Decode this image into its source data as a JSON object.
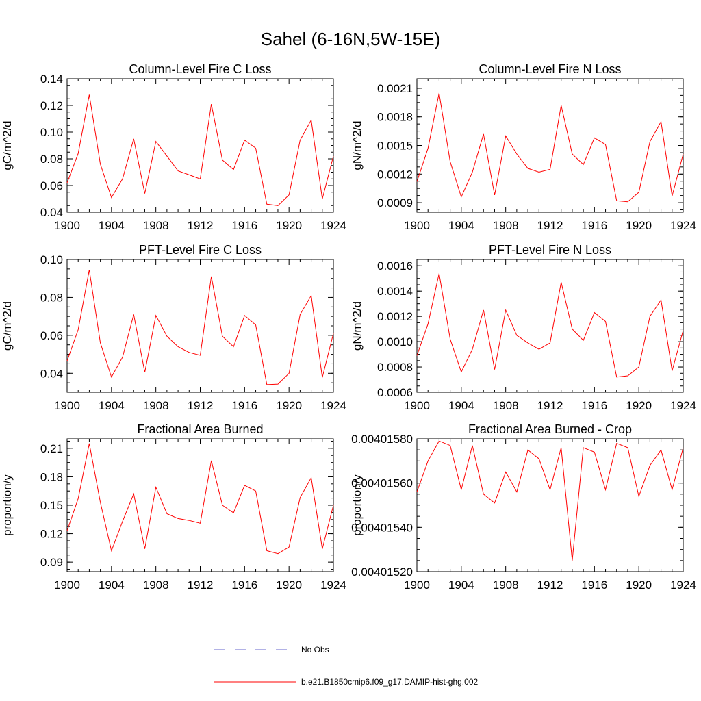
{
  "figure": {
    "title": "Sahel (6-16N,5W-15E)",
    "line_color": "#ff0000",
    "obs_color": "#6666cc"
  },
  "legend": {
    "position": "bottom-center",
    "entries": [
      {
        "label": "No Obs",
        "style": "dashed",
        "color": "#6666cc"
      },
      {
        "label": "b.e21.B1850cmip6.f09_g17.DAMIP-hist-ghg.002",
        "style": "solid",
        "color": "#ff0000"
      }
    ]
  },
  "chart_data": [
    {
      "type": "line",
      "title": "Column-Level Fire C Loss",
      "xlabel": "",
      "ylabel": "gC/m^2/d",
      "xlim": [
        1900,
        1924
      ],
      "ylim": [
        0.04,
        0.14
      ],
      "xticks": [
        1900,
        1904,
        1908,
        1912,
        1916,
        1920,
        1924
      ],
      "yticks": [
        0.04,
        0.06,
        0.08,
        0.1,
        0.12,
        0.14
      ],
      "ytick_labels": [
        "0.04",
        "0.06",
        "0.08",
        "0.10",
        "0.12",
        "0.14"
      ],
      "grid": false,
      "x": [
        1900,
        1901,
        1902,
        1903,
        1904,
        1905,
        1906,
        1907,
        1908,
        1909,
        1910,
        1911,
        1912,
        1913,
        1914,
        1915,
        1916,
        1917,
        1918,
        1919,
        1920,
        1921,
        1922,
        1923,
        1924
      ],
      "series": [
        {
          "values": [
            0.062,
            0.084,
            0.128,
            0.076,
            0.051,
            0.065,
            0.095,
            0.054,
            0.093,
            0.082,
            0.071,
            0.068,
            0.065,
            0.121,
            0.079,
            0.072,
            0.094,
            0.088,
            0.046,
            0.045,
            0.053,
            0.094,
            0.109,
            0.05,
            0.082
          ]
        }
      ]
    },
    {
      "type": "line",
      "title": "Column-Level Fire N Loss",
      "xlabel": "",
      "ylabel": "gN/m^2/d",
      "xlim": [
        1900,
        1924
      ],
      "ylim": [
        0.0008,
        0.0022
      ],
      "xticks": [
        1900,
        1904,
        1908,
        1912,
        1916,
        1920,
        1924
      ],
      "yticks": [
        0.0009,
        0.0012,
        0.0015,
        0.0018,
        0.0021
      ],
      "ytick_labels": [
        "0.0009",
        "0.0012",
        "0.0015",
        "0.0018",
        "0.0021"
      ],
      "grid": false,
      "x": [
        1900,
        1901,
        1902,
        1903,
        1904,
        1905,
        1906,
        1907,
        1908,
        1909,
        1910,
        1911,
        1912,
        1913,
        1914,
        1915,
        1916,
        1917,
        1918,
        1919,
        1920,
        1921,
        1922,
        1923,
        1924
      ],
      "series": [
        {
          "values": [
            0.00112,
            0.00147,
            0.00205,
            0.00133,
            0.00096,
            0.00122,
            0.00162,
            0.00098,
            0.0016,
            0.00141,
            0.00126,
            0.00122,
            0.00125,
            0.00192,
            0.00141,
            0.0013,
            0.00158,
            0.00151,
            0.00092,
            0.00091,
            0.00101,
            0.00154,
            0.00175,
            0.00097,
            0.00141
          ]
        }
      ]
    },
    {
      "type": "line",
      "title": "PFT-Level Fire C Loss",
      "xlabel": "",
      "ylabel": "gC/m^2/d",
      "xlim": [
        1900,
        1924
      ],
      "ylim": [
        0.03,
        0.1
      ],
      "xticks": [
        1900,
        1904,
        1908,
        1912,
        1916,
        1920,
        1924
      ],
      "yticks": [
        0.04,
        0.06,
        0.08,
        0.1
      ],
      "ytick_labels": [
        "0.04",
        "0.06",
        "0.08",
        "0.10"
      ],
      "grid": false,
      "x": [
        1900,
        1901,
        1902,
        1903,
        1904,
        1905,
        1906,
        1907,
        1908,
        1909,
        1910,
        1911,
        1912,
        1913,
        1914,
        1915,
        1916,
        1917,
        1918,
        1919,
        1920,
        1921,
        1922,
        1923,
        1924
      ],
      "series": [
        {
          "values": [
            0.0465,
            0.063,
            0.0945,
            0.056,
            0.038,
            0.0485,
            0.071,
            0.0405,
            0.0705,
            0.0595,
            0.054,
            0.051,
            0.0495,
            0.091,
            0.0595,
            0.054,
            0.0705,
            0.0655,
            0.034,
            0.0343,
            0.04,
            0.071,
            0.081,
            0.0378,
            0.061
          ]
        }
      ]
    },
    {
      "type": "line",
      "title": "PFT-Level Fire N Loss",
      "xlabel": "",
      "ylabel": "gN/m^2/d",
      "xlim": [
        1900,
        1924
      ],
      "ylim": [
        0.0006,
        0.00165
      ],
      "xticks": [
        1900,
        1904,
        1908,
        1912,
        1916,
        1920,
        1924
      ],
      "yticks": [
        0.0006,
        0.0008,
        0.001,
        0.0012,
        0.0014,
        0.0016
      ],
      "ytick_labels": [
        "0.0006",
        "0.0008",
        "0.0010",
        "0.0012",
        "0.0014",
        "0.0016"
      ],
      "grid": false,
      "x": [
        1900,
        1901,
        1902,
        1903,
        1904,
        1905,
        1906,
        1907,
        1908,
        1909,
        1910,
        1911,
        1912,
        1913,
        1914,
        1915,
        1916,
        1917,
        1918,
        1919,
        1920,
        1921,
        1922,
        1923,
        1924
      ],
      "series": [
        {
          "values": [
            0.00089,
            0.00114,
            0.00154,
            0.00102,
            0.00076,
            0.00094,
            0.00125,
            0.00078,
            0.00125,
            0.00105,
            0.00099,
            0.00094,
            0.00099,
            0.00147,
            0.0011,
            0.00101,
            0.00123,
            0.00116,
            0.00072,
            0.00073,
            0.0008,
            0.0012,
            0.00133,
            0.00077,
            0.00109
          ]
        }
      ]
    },
    {
      "type": "line",
      "title": "Fractional Area Burned",
      "xlabel": "",
      "ylabel": "proportion/y",
      "xlim": [
        1900,
        1924
      ],
      "ylim": [
        0.08,
        0.22
      ],
      "xticks": [
        1900,
        1904,
        1908,
        1912,
        1916,
        1920,
        1924
      ],
      "yticks": [
        0.09,
        0.12,
        0.15,
        0.18,
        0.21
      ],
      "ytick_labels": [
        "0.09",
        "0.12",
        "0.15",
        "0.18",
        "0.21"
      ],
      "grid": false,
      "x": [
        1900,
        1901,
        1902,
        1903,
        1904,
        1905,
        1906,
        1907,
        1908,
        1909,
        1910,
        1911,
        1912,
        1913,
        1914,
        1915,
        1916,
        1917,
        1918,
        1919,
        1920,
        1921,
        1922,
        1923,
        1924
      ],
      "series": [
        {
          "values": [
            0.123,
            0.157,
            0.215,
            0.153,
            0.102,
            0.133,
            0.162,
            0.104,
            0.169,
            0.141,
            0.136,
            0.134,
            0.131,
            0.197,
            0.15,
            0.142,
            0.171,
            0.165,
            0.102,
            0.099,
            0.106,
            0.158,
            0.179,
            0.104,
            0.15
          ]
        }
      ]
    },
    {
      "type": "line",
      "title": "Fractional Area Burned - Crop",
      "xlabel": "",
      "ylabel": "proportion/y",
      "xlim": [
        1900,
        1924
      ],
      "ylim": [
        0.0040152,
        0.0040158
      ],
      "xticks": [
        1900,
        1904,
        1908,
        1912,
        1916,
        1920,
        1924
      ],
      "yticks": [
        0.0040152,
        0.0040154,
        0.0040156,
        0.0040158
      ],
      "ytick_labels": [
        "0.00401520",
        "0.00401540",
        "0.00401560",
        "0.00401580"
      ],
      "grid": false,
      "x": [
        1900,
        1901,
        1902,
        1903,
        1904,
        1905,
        1906,
        1907,
        1908,
        1909,
        1910,
        1911,
        1912,
        1913,
        1914,
        1915,
        1916,
        1917,
        1918,
        1919,
        1920,
        1921,
        1922,
        1923,
        1924
      ],
      "series": [
        {
          "values": [
            0.00401556,
            0.0040157,
            0.00401579,
            0.00401577,
            0.00401557,
            0.00401577,
            0.00401555,
            0.00401551,
            0.00401565,
            0.00401556,
            0.00401575,
            0.00401571,
            0.00401557,
            0.00401576,
            0.00401525,
            0.00401576,
            0.00401574,
            0.00401557,
            0.00401578,
            0.00401576,
            0.00401554,
            0.00401568,
            0.00401575,
            0.00401557,
            0.00401576
          ]
        }
      ]
    }
  ]
}
